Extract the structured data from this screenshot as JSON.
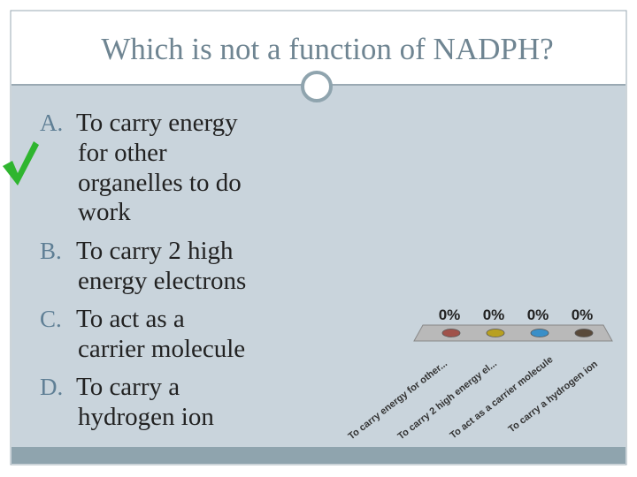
{
  "slide": {
    "title": "Which is not a function of NADPH?",
    "options": [
      {
        "letter": "A.",
        "lines": [
          "To carry energy",
          "for other",
          "organelles to do",
          "work"
        ]
      },
      {
        "letter": "B.",
        "lines": [
          "To carry 2 high",
          "energy electrons"
        ]
      },
      {
        "letter": "C.",
        "lines": [
          "To act as a",
          "carrier molecule"
        ]
      },
      {
        "letter": "D.",
        "lines": [
          "To carry a",
          "hydrogen ion"
        ]
      }
    ]
  },
  "chart_data": {
    "type": "bar",
    "categories": [
      "To carry energy for other...",
      "To carry 2 high energy el...",
      "To act as a carrier molecule",
      "To carry a hydrogen ion"
    ],
    "values": [
      0,
      0,
      0,
      0
    ],
    "value_labels": [
      "0%",
      "0%",
      "0%",
      "0%"
    ],
    "colors": [
      "#a0524a",
      "#b8a020",
      "#3a8fc8",
      "#5a4a3a"
    ],
    "ylim": [
      0,
      100
    ]
  }
}
